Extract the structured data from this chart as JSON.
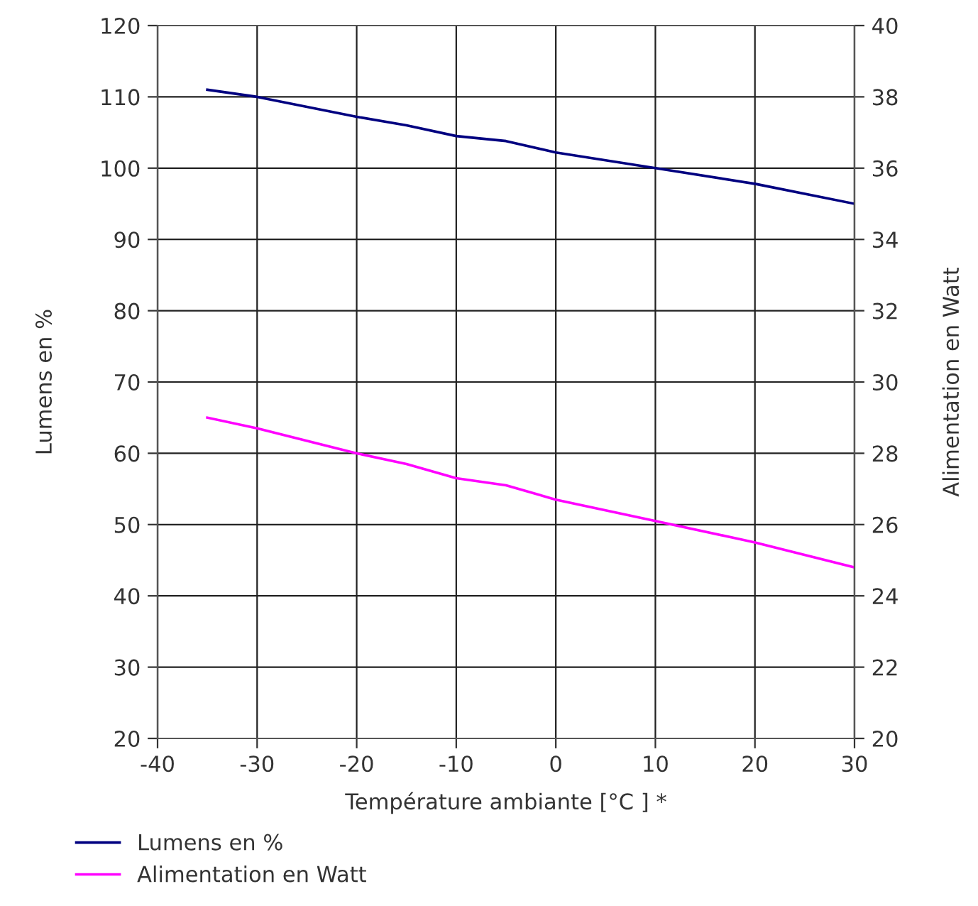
{
  "chart_data": {
    "type": "line",
    "xlabel": "Température ambiante [°C ] *",
    "ylabel": "Lumens en %",
    "y2label": "Alimentation en Watt",
    "x": [
      -35,
      -30,
      -20,
      -15,
      -10,
      -5,
      0,
      10,
      20,
      30
    ],
    "series": [
      {
        "name": "Lumens en %",
        "color": "#000080",
        "values": [
          111,
          110,
          107.2,
          106,
          104.5,
          103.8,
          102.2,
          100,
          97.8,
          95
        ]
      },
      {
        "name": "Alimentation en Watt",
        "color": "#ff00ff",
        "axis": "y2",
        "values": [
          29.0,
          28.7,
          28.0,
          27.7,
          27.3,
          27.1,
          26.7,
          26.1,
          25.5,
          24.8
        ]
      }
    ],
    "xlim": [
      -40,
      30
    ],
    "xticks": [
      -40,
      -30,
      -20,
      -10,
      0,
      10,
      20,
      30
    ],
    "ylim": [
      20,
      120
    ],
    "yticks": [
      20,
      30,
      40,
      50,
      60,
      70,
      80,
      90,
      100,
      110,
      120
    ],
    "y2lim": [
      20,
      40
    ],
    "y2ticks": [
      20,
      22,
      24,
      26,
      28,
      30,
      32,
      34,
      36,
      38,
      40
    ],
    "grid": true,
    "legend": "bottom left",
    "marker": "none",
    "line_style": "solid"
  }
}
